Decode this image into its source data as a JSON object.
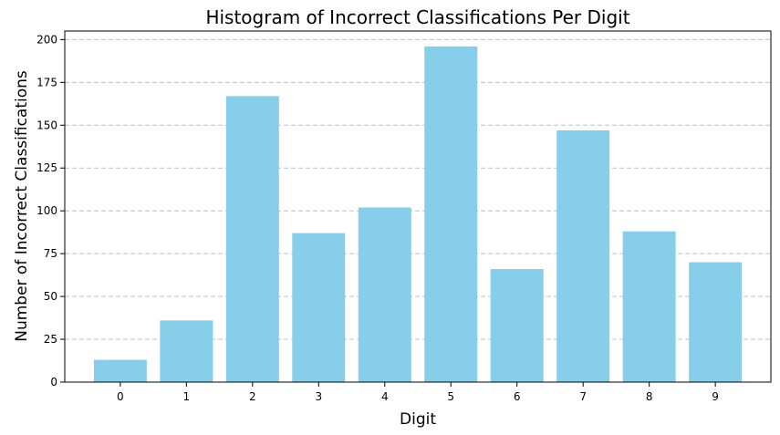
{
  "chart_data": {
    "type": "bar",
    "title": "Histogram of Incorrect Classifications Per Digit",
    "xlabel": "Digit",
    "ylabel": "Number of Incorrect Classifications",
    "categories": [
      "0",
      "1",
      "2",
      "3",
      "4",
      "5",
      "6",
      "7",
      "8",
      "9"
    ],
    "values": [
      13,
      36,
      167,
      87,
      102,
      196,
      66,
      147,
      88,
      70
    ],
    "ylim": [
      0,
      205
    ],
    "yticks": [
      0,
      25,
      50,
      75,
      100,
      125,
      150,
      175,
      200
    ],
    "grid": "y-dashed",
    "bar_color": "#87ceeb",
    "legend": "none"
  }
}
